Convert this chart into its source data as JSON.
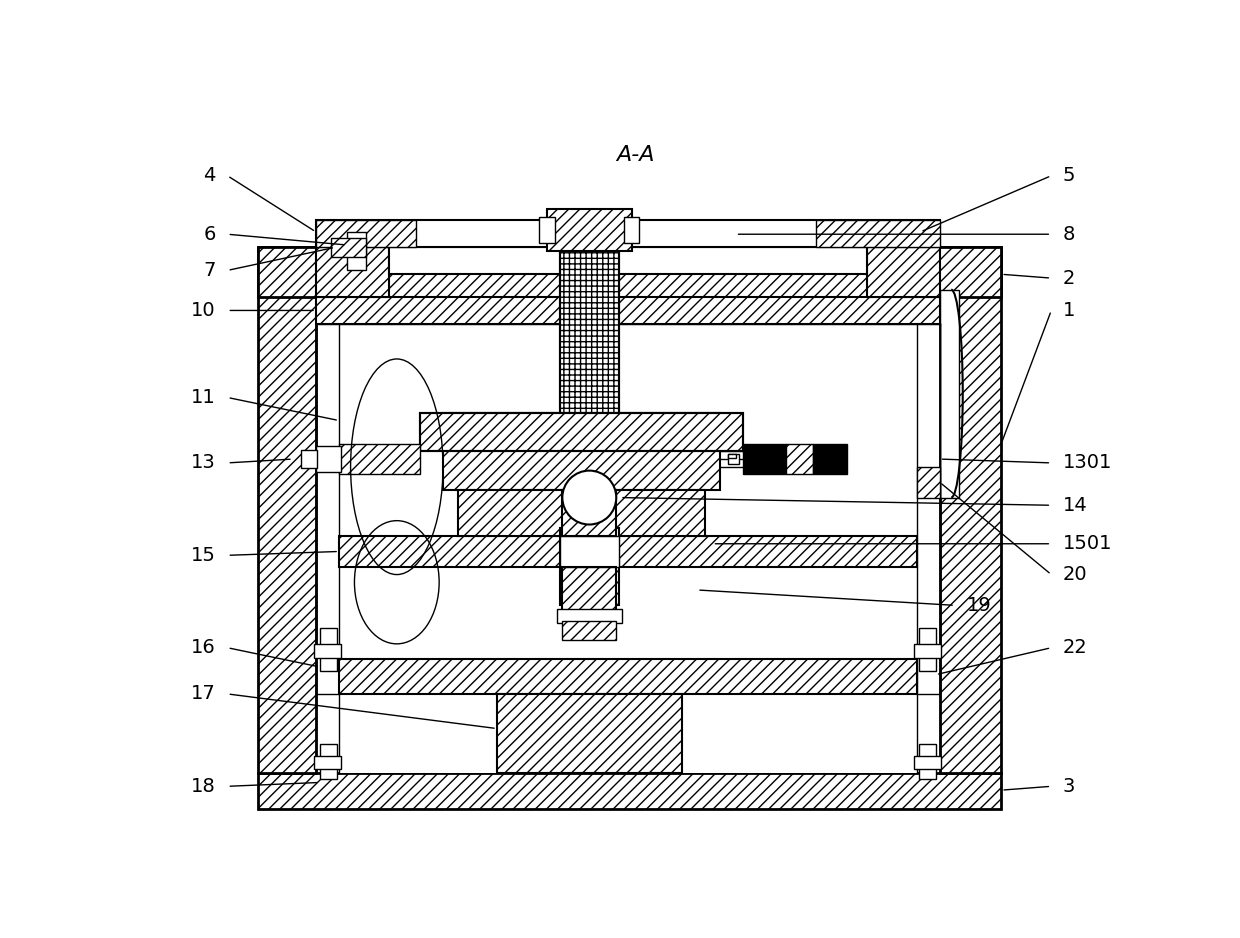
{
  "title": "A-A",
  "background": "#ffffff",
  "line_color": "#000000",
  "label_fontsize": 14,
  "title_fontsize": 16,
  "fig_width": 12.4,
  "fig_height": 9.38,
  "dpi": 100
}
